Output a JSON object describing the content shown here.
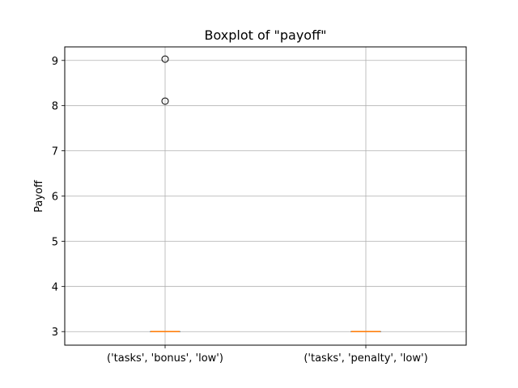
{
  "chart_data": {
    "type": "boxplot",
    "title": "Boxplot of \"payoff\"",
    "xlabel": "",
    "ylabel": "Payoff",
    "ylim": [
      2.7,
      9.3
    ],
    "yticks": [
      3,
      4,
      5,
      6,
      7,
      8,
      9
    ],
    "grid": true,
    "categories": [
      "('tasks', 'bonus', 'low')",
      "('tasks', 'penalty', 'low')"
    ],
    "boxes": [
      {
        "q1": 3,
        "median": 3,
        "q3": 3,
        "whisker_low": 3,
        "whisker_high": 3,
        "outliers": [
          8.1,
          9.03
        ]
      },
      {
        "q1": 3,
        "median": 3,
        "q3": 3,
        "whisker_low": 3,
        "whisker_high": 3,
        "outliers": []
      }
    ],
    "colors": {
      "median": "#ff7f0e",
      "grid": "#b0b0b0",
      "box": "#000000"
    }
  }
}
